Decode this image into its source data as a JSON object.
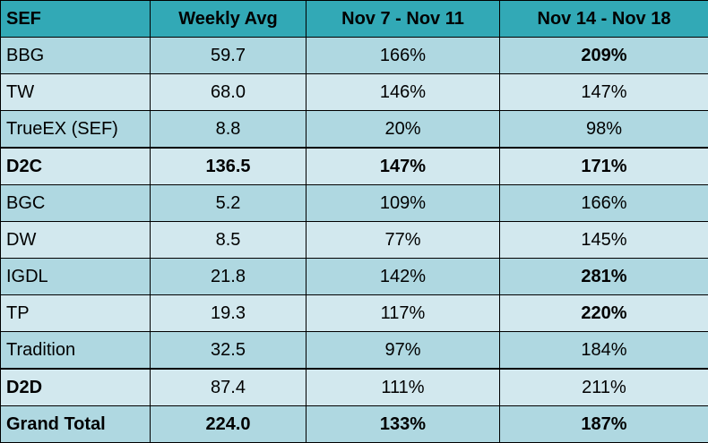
{
  "table": {
    "headers": [
      "SEF",
      "Weekly Avg",
      "Nov 7 - Nov 11",
      "Nov 14 - Nov 18"
    ],
    "rows": [
      {
        "sef": "BBG",
        "avg": "59.7",
        "w1": "166%",
        "w2": "209%"
      },
      {
        "sef": "TW",
        "avg": "68.0",
        "w1": "146%",
        "w2": "147%"
      },
      {
        "sef": "TrueEX (SEF)",
        "avg": "8.8",
        "w1": "20%",
        "w2": "98%"
      },
      {
        "sef": "D2C",
        "avg": "136.5",
        "w1": "147%",
        "w2": "171%"
      },
      {
        "sef": "BGC",
        "avg": "5.2",
        "w1": "109%",
        "w2": "166%"
      },
      {
        "sef": "DW",
        "avg": "8.5",
        "w1": "77%",
        "w2": "145%"
      },
      {
        "sef": "IGDL",
        "avg": "21.8",
        "w1": "142%",
        "w2": "281%"
      },
      {
        "sef": "TP",
        "avg": "19.3",
        "w1": "117%",
        "w2": "220%"
      },
      {
        "sef": "Tradition",
        "avg": "32.5",
        "w1": "97%",
        "w2": "184%"
      },
      {
        "sef": "D2D",
        "avg": "87.4",
        "w1": "111%",
        "w2": "211%"
      },
      {
        "sef": "Grand Total",
        "avg": "224.0",
        "w1": "133%",
        "w2": "187%"
      }
    ]
  },
  "colors": {
    "header_bg": "#32a9b6",
    "row_dark": "#afd8e1",
    "row_light": "#d2e8ee"
  }
}
